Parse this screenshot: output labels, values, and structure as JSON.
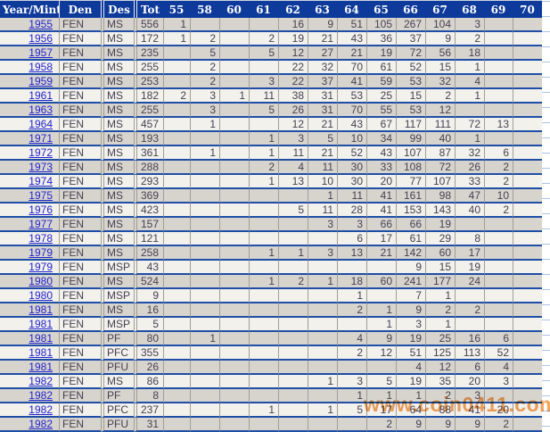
{
  "table": {
    "columns": [
      {
        "key": "year",
        "label": "Year/Mint"
      },
      {
        "key": "den",
        "label": "Den"
      },
      {
        "key": "des",
        "label": "Des"
      },
      {
        "key": "tot",
        "label": "Tot"
      },
      {
        "key": "g55",
        "label": "55"
      },
      {
        "key": "g58",
        "label": "58"
      },
      {
        "key": "g60",
        "label": "60"
      },
      {
        "key": "g61",
        "label": "61"
      },
      {
        "key": "g62",
        "label": "62"
      },
      {
        "key": "g63",
        "label": "63"
      },
      {
        "key": "g64",
        "label": "64"
      },
      {
        "key": "g65",
        "label": "65"
      },
      {
        "key": "g66",
        "label": "66"
      },
      {
        "key": "g67",
        "label": "67"
      },
      {
        "key": "g68",
        "label": "68"
      },
      {
        "key": "g69",
        "label": "69"
      },
      {
        "key": "g70",
        "label": "70"
      }
    ],
    "grade_keys": [
      "55",
      "58",
      "60",
      "61",
      "62",
      "63",
      "64",
      "65",
      "66",
      "67",
      "68",
      "69",
      "70"
    ],
    "rows": [
      {
        "year": "1955",
        "den": "FEN",
        "des": "MS",
        "tot": "556",
        "grades": [
          "1",
          "",
          "",
          "",
          "16",
          "9",
          "51",
          "105",
          "267",
          "104",
          "3",
          "",
          ""
        ]
      },
      {
        "year": "1956",
        "den": "FEN",
        "des": "MS",
        "tot": "172",
        "grades": [
          "1",
          "2",
          "",
          "2",
          "19",
          "21",
          "43",
          "36",
          "37",
          "9",
          "2",
          "",
          ""
        ]
      },
      {
        "year": "1957",
        "den": "FEN",
        "des": "MS",
        "tot": "235",
        "grades": [
          "",
          "5",
          "",
          "5",
          "12",
          "27",
          "21",
          "19",
          "72",
          "56",
          "18",
          "",
          ""
        ]
      },
      {
        "year": "1958",
        "den": "FEN",
        "des": "MS",
        "tot": "255",
        "grades": [
          "",
          "2",
          "",
          "",
          "22",
          "32",
          "70",
          "61",
          "52",
          "15",
          "1",
          "",
          ""
        ]
      },
      {
        "year": "1959",
        "den": "FEN",
        "des": "MS",
        "tot": "253",
        "grades": [
          "",
          "2",
          "",
          "3",
          "22",
          "37",
          "41",
          "59",
          "53",
          "32",
          "4",
          "",
          ""
        ]
      },
      {
        "year": "1961",
        "den": "FEN",
        "des": "MS",
        "tot": "182",
        "grades": [
          "2",
          "3",
          "1",
          "11",
          "38",
          "31",
          "53",
          "25",
          "15",
          "2",
          "1",
          "",
          ""
        ]
      },
      {
        "year": "1963",
        "den": "FEN",
        "des": "MS",
        "tot": "255",
        "grades": [
          "",
          "3",
          "",
          "5",
          "26",
          "31",
          "70",
          "55",
          "53",
          "12",
          "",
          "",
          ""
        ]
      },
      {
        "year": "1964",
        "den": "FEN",
        "des": "MS",
        "tot": "457",
        "grades": [
          "",
          "1",
          "",
          "",
          "12",
          "21",
          "43",
          "67",
          "117",
          "111",
          "72",
          "13",
          ""
        ]
      },
      {
        "year": "1971",
        "den": "FEN",
        "des": "MS",
        "tot": "193",
        "grades": [
          "",
          "",
          "",
          "1",
          "3",
          "5",
          "10",
          "34",
          "99",
          "40",
          "1",
          "",
          ""
        ]
      },
      {
        "year": "1972",
        "den": "FEN",
        "des": "MS",
        "tot": "361",
        "grades": [
          "",
          "1",
          "",
          "1",
          "11",
          "21",
          "52",
          "43",
          "107",
          "87",
          "32",
          "6",
          ""
        ]
      },
      {
        "year": "1973",
        "den": "FEN",
        "des": "MS",
        "tot": "288",
        "grades": [
          "",
          "",
          "",
          "2",
          "4",
          "11",
          "30",
          "33",
          "108",
          "72",
          "26",
          "2",
          ""
        ]
      },
      {
        "year": "1974",
        "den": "FEN",
        "des": "MS",
        "tot": "293",
        "grades": [
          "",
          "",
          "",
          "1",
          "13",
          "10",
          "30",
          "20",
          "77",
          "107",
          "33",
          "2",
          ""
        ]
      },
      {
        "year": "1975",
        "den": "FEN",
        "des": "MS",
        "tot": "369",
        "grades": [
          "",
          "",
          "",
          "",
          "",
          "1",
          "11",
          "41",
          "161",
          "98",
          "47",
          "10",
          ""
        ]
      },
      {
        "year": "1976",
        "den": "FEN",
        "des": "MS",
        "tot": "423",
        "grades": [
          "",
          "",
          "",
          "",
          "5",
          "11",
          "28",
          "41",
          "153",
          "143",
          "40",
          "2",
          ""
        ]
      },
      {
        "year": "1977",
        "den": "FEN",
        "des": "MS",
        "tot": "157",
        "grades": [
          "",
          "",
          "",
          "",
          "",
          "3",
          "3",
          "66",
          "66",
          "19",
          "",
          "",
          ""
        ]
      },
      {
        "year": "1978",
        "den": "FEN",
        "des": "MS",
        "tot": "121",
        "grades": [
          "",
          "",
          "",
          "",
          "",
          "",
          "6",
          "17",
          "61",
          "29",
          "8",
          "",
          ""
        ]
      },
      {
        "year": "1979",
        "den": "FEN",
        "des": "MS",
        "tot": "258",
        "grades": [
          "",
          "",
          "",
          "1",
          "1",
          "3",
          "13",
          "21",
          "142",
          "60",
          "17",
          "",
          ""
        ]
      },
      {
        "year": "1979",
        "den": "FEN",
        "des": "MSP",
        "tot": "43",
        "grades": [
          "",
          "",
          "",
          "",
          "",
          "",
          "",
          "",
          "9",
          "15",
          "19",
          "",
          ""
        ]
      },
      {
        "year": "1980",
        "den": "FEN",
        "des": "MS",
        "tot": "524",
        "grades": [
          "",
          "",
          "",
          "1",
          "2",
          "1",
          "18",
          "60",
          "241",
          "177",
          "24",
          "",
          ""
        ]
      },
      {
        "year": "1980",
        "den": "FEN",
        "des": "MSP",
        "tot": "9",
        "grades": [
          "",
          "",
          "",
          "",
          "",
          "",
          "1",
          "",
          "7",
          "1",
          "",
          "",
          ""
        ]
      },
      {
        "year": "1981",
        "den": "FEN",
        "des": "MS",
        "tot": "16",
        "grades": [
          "",
          "",
          "",
          "",
          "",
          "",
          "2",
          "1",
          "9",
          "2",
          "2",
          "",
          ""
        ]
      },
      {
        "year": "1981",
        "den": "FEN",
        "des": "MSP",
        "tot": "5",
        "grades": [
          "",
          "",
          "",
          "",
          "",
          "",
          "",
          "1",
          "3",
          "1",
          "",
          "",
          ""
        ]
      },
      {
        "year": "1981",
        "den": "FEN",
        "des": "PF",
        "tot": "80",
        "grades": [
          "",
          "1",
          "",
          "",
          "",
          "",
          "4",
          "9",
          "19",
          "25",
          "16",
          "6",
          ""
        ]
      },
      {
        "year": "1981",
        "den": "FEN",
        "des": "PFC",
        "tot": "355",
        "grades": [
          "",
          "",
          "",
          "",
          "",
          "",
          "2",
          "12",
          "51",
          "125",
          "113",
          "52",
          ""
        ]
      },
      {
        "year": "1981",
        "den": "FEN",
        "des": "PFU",
        "tot": "26",
        "grades": [
          "",
          "",
          "",
          "",
          "",
          "",
          "",
          "",
          "4",
          "12",
          "6",
          "4",
          ""
        ]
      },
      {
        "year": "1982",
        "den": "FEN",
        "des": "MS",
        "tot": "86",
        "grades": [
          "",
          "",
          "",
          "",
          "",
          "1",
          "3",
          "5",
          "19",
          "35",
          "20",
          "3",
          ""
        ]
      },
      {
        "year": "1982",
        "den": "FEN",
        "des": "PF",
        "tot": "8",
        "grades": [
          "",
          "",
          "",
          "",
          "",
          "",
          "1",
          "1",
          "1",
          "2",
          "3",
          "",
          ""
        ]
      },
      {
        "year": "1982",
        "den": "FEN",
        "des": "PFC",
        "tot": "237",
        "grades": [
          "",
          "",
          "",
          "1",
          "",
          "1",
          "5",
          "17",
          "64",
          "88",
          "41",
          "20",
          ""
        ]
      },
      {
        "year": "1982",
        "den": "FEN",
        "des": "PFU",
        "tot": "31",
        "grades": [
          "",
          "",
          "",
          "",
          "",
          "",
          "",
          "2",
          "9",
          "9",
          "9",
          "2",
          ""
        ]
      }
    ]
  },
  "watermark": {
    "text": "www.coin0411.com",
    "color": "#f5a45f"
  },
  "colors": {
    "header_bg": "#0e3a9c",
    "header_text": "#ffffff",
    "row_separator": "#1e4ea6",
    "row_odd_bg": "#d7d4ce",
    "row_even_bg": "#f2f1ec",
    "cell_divider": "#a09d98",
    "year_link": "#2222cc",
    "body_text": "#464050",
    "margin_rule": "#adc2e4"
  }
}
